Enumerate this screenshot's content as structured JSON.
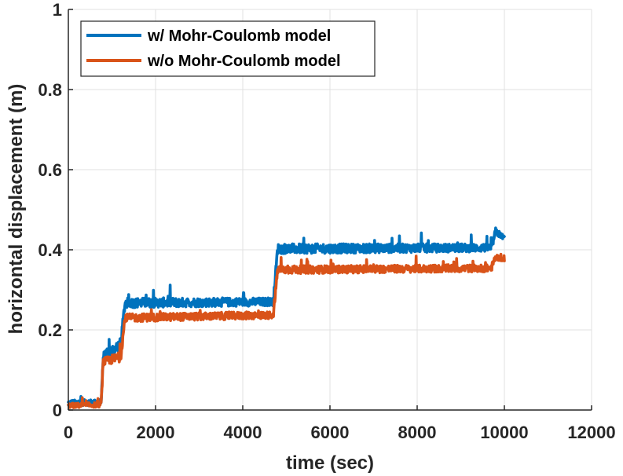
{
  "chart_data": {
    "type": "line",
    "title": "",
    "xlabel": "time (sec)",
    "ylabel": "horizontal displacement (m)",
    "xlim": [
      0,
      12000
    ],
    "ylim": [
      0,
      1
    ],
    "xticks": [
      0,
      2000,
      4000,
      6000,
      8000,
      10000,
      12000
    ],
    "yticks": [
      0,
      0.2,
      0.4,
      0.6,
      0.8,
      1
    ],
    "xtick_labels": [
      "0",
      "2000",
      "4000",
      "6000",
      "8000",
      "10000",
      "12000"
    ],
    "ytick_labels": [
      "0",
      "0.2",
      "0.4",
      "0.6",
      "0.8",
      "1"
    ],
    "grid": true,
    "legend_position": "top-left",
    "series": [
      {
        "name": "w/ Mohr-Coulomb model",
        "color": "#0072BD",
        "x": [
          0,
          750,
          800,
          1200,
          1300,
          4700,
          4800,
          9700,
          9800,
          10000
        ],
        "y": [
          0.01,
          0.012,
          0.12,
          0.15,
          0.255,
          0.26,
          0.39,
          0.395,
          0.435,
          0.425
        ],
        "spread": [
          0.015,
          0.015,
          0.025,
          0.03,
          0.025,
          0.02,
          0.025,
          0.02,
          0.02,
          0.01
        ]
      },
      {
        "name": "w/o Mohr-Coulomb model",
        "color": "#D95319",
        "x": [
          0,
          750,
          800,
          1200,
          1300,
          4700,
          4800,
          9700,
          9800,
          10000
        ],
        "y": [
          0.005,
          0.007,
          0.11,
          0.12,
          0.22,
          0.228,
          0.34,
          0.345,
          0.375,
          0.37
        ],
        "spread": [
          0.012,
          0.012,
          0.02,
          0.025,
          0.02,
          0.018,
          0.02,
          0.018,
          0.015,
          0.008
        ]
      }
    ]
  }
}
